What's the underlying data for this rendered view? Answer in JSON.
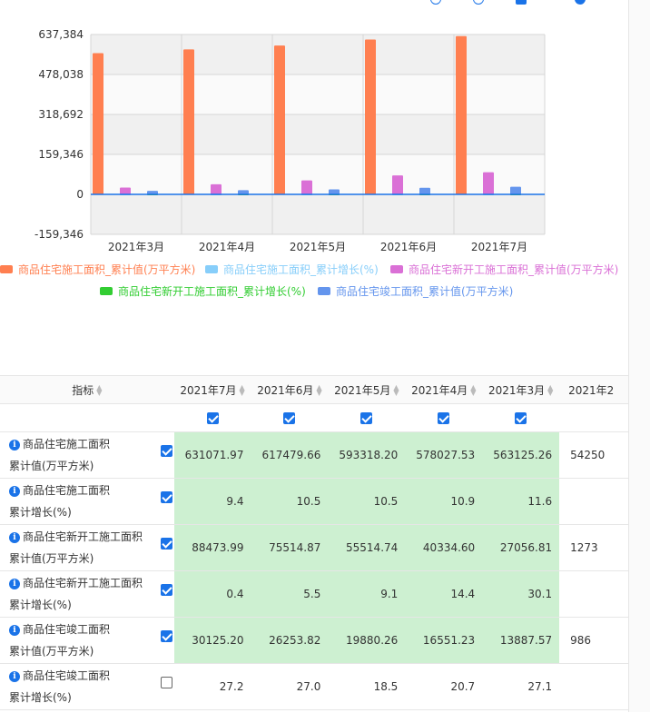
{
  "colors": {
    "construction_area": "#FF7F50",
    "construction_growth": "#87CEFA",
    "new_construction_area": "#DA70D6",
    "new_construction_growth": "#32CD32",
    "completed_area": "#6495ED",
    "highlight": "#cdf0d1",
    "accent": "#1a73e8"
  },
  "chart_data": {
    "type": "bar",
    "categories": [
      "2021年3月",
      "2021年4月",
      "2021年5月",
      "2021年6月",
      "2021年7月"
    ],
    "y_tick_labels": [
      "637,384",
      "478,038",
      "318,692",
      "159,346",
      "0",
      "-159,346"
    ],
    "ylim": [
      -159346,
      637384
    ],
    "series": [
      {
        "name": "商品住宅施工面积_累计值(万平方米)",
        "color": "#FF7F50",
        "values": [
          563125.26,
          578027.53,
          593318.2,
          617479.66,
          631071.97
        ]
      },
      {
        "name": "商品住宅施工面积_累计增长(%)",
        "color": "#87CEFA",
        "values": [
          11.6,
          10.9,
          10.5,
          10.5,
          9.4
        ]
      },
      {
        "name": "商品住宅新开工施工面积_累计值(万平方米)",
        "color": "#DA70D6",
        "values": [
          27056.81,
          40334.6,
          55514.74,
          75514.87,
          88473.99
        ]
      },
      {
        "name": "商品住宅新开工施工面积_累计增长(%)",
        "color": "#32CD32",
        "values": [
          30.1,
          14.4,
          9.1,
          5.5,
          0.4
        ]
      },
      {
        "name": "商品住宅竣工面积_累计值(万平方米)",
        "color": "#6495ED",
        "values": [
          13887.57,
          16551.23,
          19880.26,
          26253.82,
          30125.2
        ]
      }
    ],
    "grid": true,
    "legend": "bottom"
  },
  "table": {
    "header_label": "指标",
    "columns": [
      "2021年7月",
      "2021年6月",
      "2021年5月",
      "2021年4月",
      "2021年3月",
      "2021年2"
    ],
    "rows": [
      {
        "name1": "商品住宅施工面积",
        "name2": "累计值(万平方米)",
        "checked": true,
        "values": [
          "631071.97",
          "617479.66",
          "593318.20",
          "578027.53",
          "563125.26",
          "54250"
        ]
      },
      {
        "name1": "商品住宅施工面积",
        "name2": "累计增长(%)",
        "checked": true,
        "values": [
          "9.4",
          "10.5",
          "10.5",
          "10.9",
          "11.6",
          ""
        ]
      },
      {
        "name1": "商品住宅新开工施工面积",
        "name2": "累计值(万平方米)",
        "checked": true,
        "values": [
          "88473.99",
          "75514.87",
          "55514.74",
          "40334.60",
          "27056.81",
          "1273"
        ]
      },
      {
        "name1": "商品住宅新开工施工面积",
        "name2": "累计增长(%)",
        "checked": true,
        "values": [
          "0.4",
          "5.5",
          "9.1",
          "14.4",
          "30.1",
          ""
        ]
      },
      {
        "name1": "商品住宅竣工面积",
        "name2": "累计值(万平方米)",
        "checked": true,
        "values": [
          "30125.20",
          "26253.82",
          "19880.26",
          "16551.23",
          "13887.57",
          "986"
        ]
      },
      {
        "name1": "商品住宅竣工面积",
        "name2": "累计增长(%)",
        "checked": false,
        "values": [
          "27.2",
          "27.0",
          "18.5",
          "20.7",
          "27.1",
          ""
        ]
      }
    ]
  }
}
